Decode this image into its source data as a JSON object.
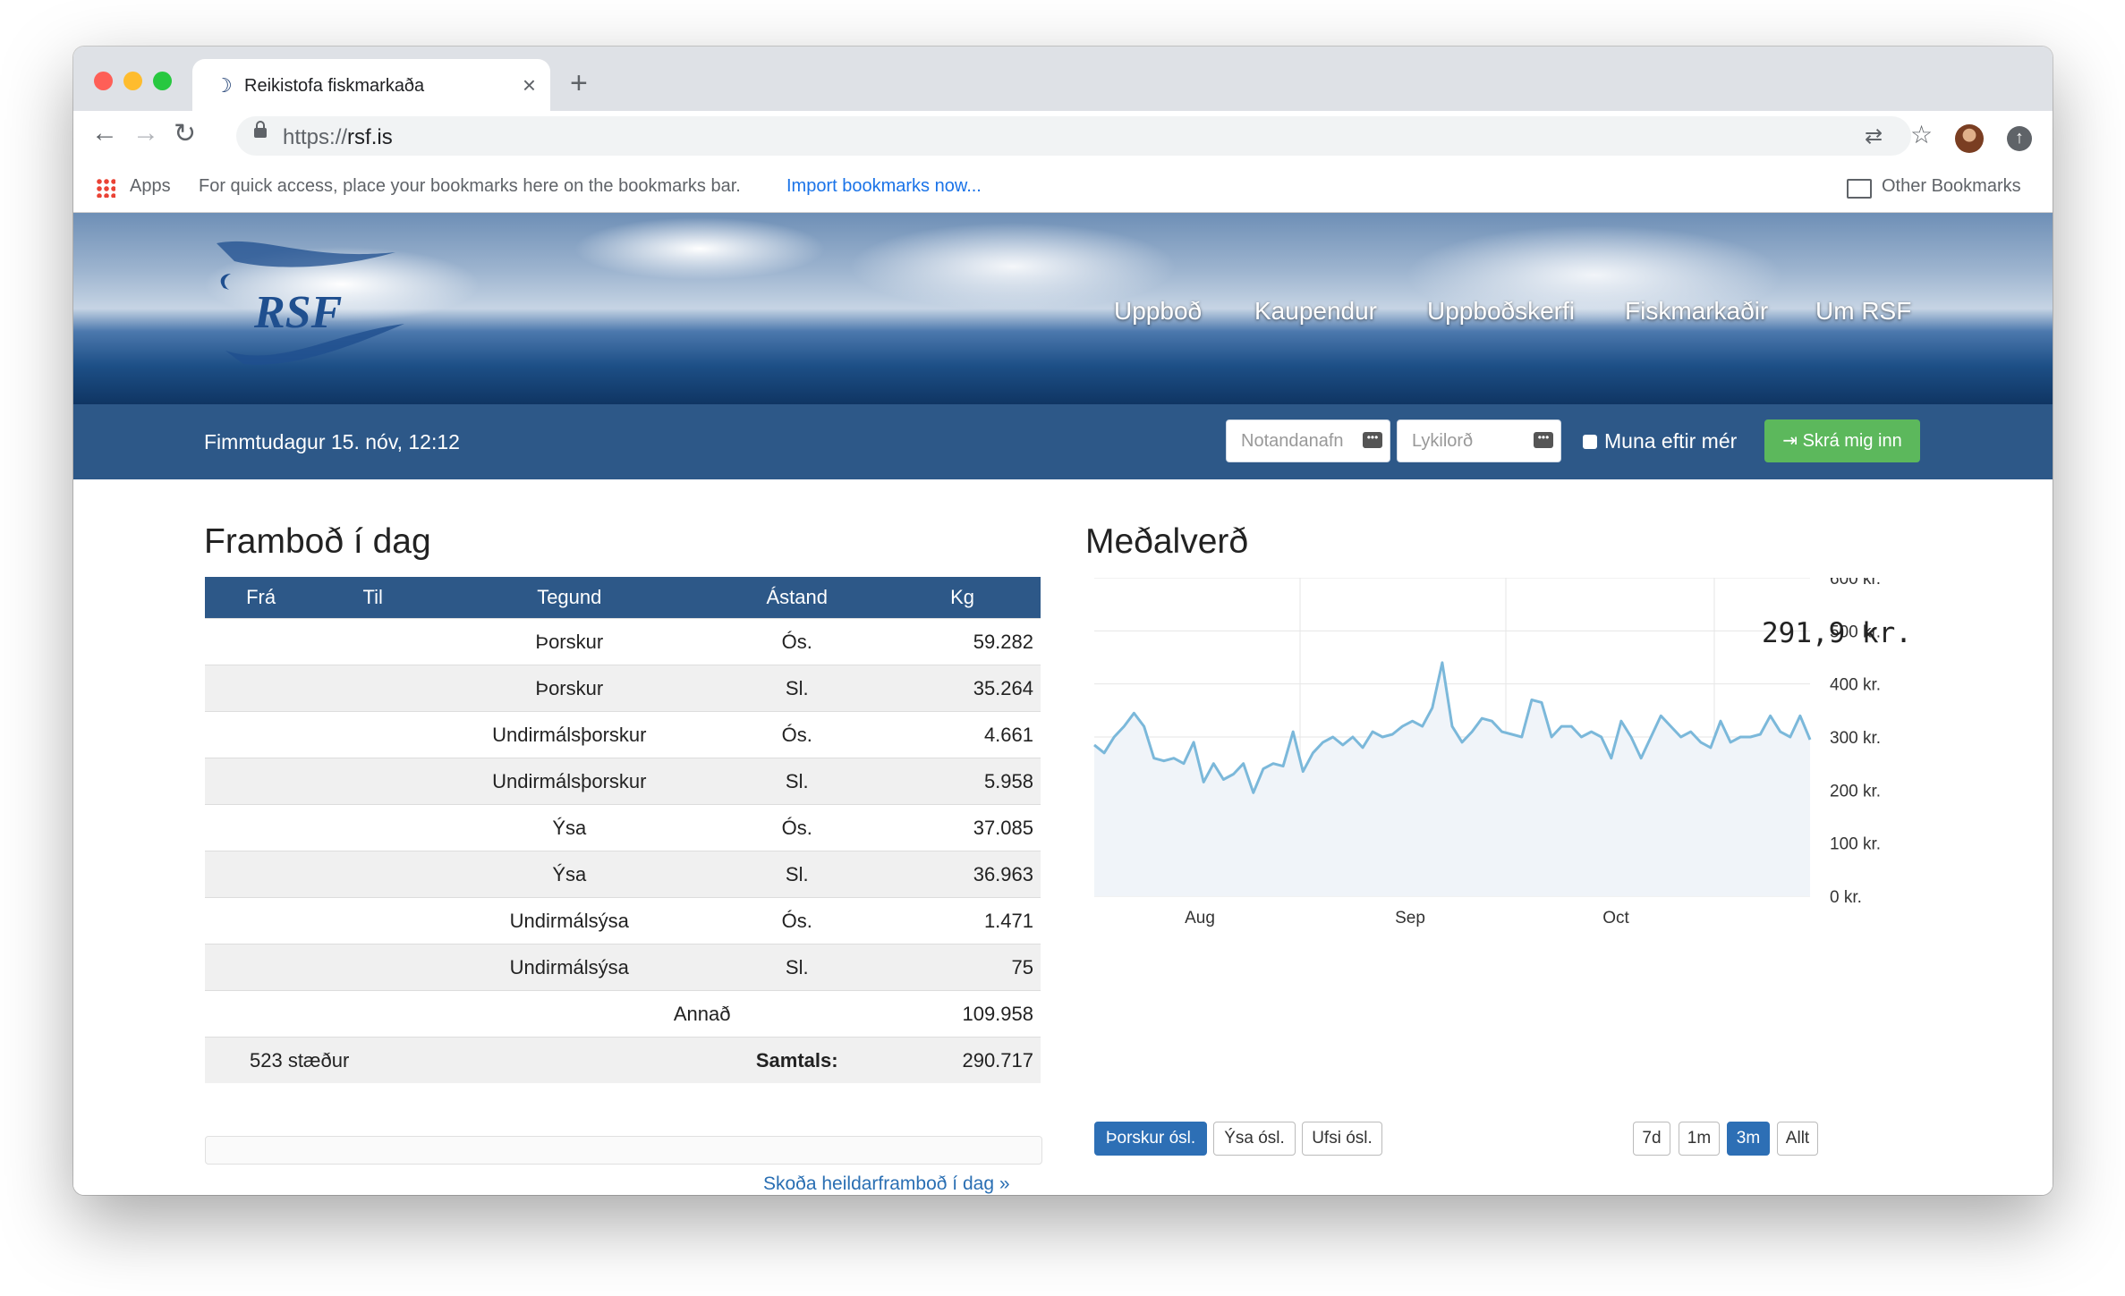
{
  "browser": {
    "tab_title": "Reikistofa fiskmarkaða",
    "new_tab": "+",
    "close": "×",
    "url_scheme": "https://",
    "url_host": "rsf.is",
    "bookmarks": {
      "apps": "Apps",
      "hint": "For quick access, place your bookmarks here on the bookmarks bar.",
      "import": "Import bookmarks now...",
      "other": "Other Bookmarks"
    }
  },
  "site": {
    "logo": "RSF",
    "nav": [
      "Uppboð",
      "Kaupendur",
      "Uppboðskerfi",
      "Fiskmarkaðir",
      "Um RSF"
    ],
    "date": "Fimmtudagur 15. nóv, 12:12",
    "username_placeholder": "Notandanafn",
    "password_placeholder": "Lykilorð",
    "remember": "Muna eftir mér",
    "login": "Skrá mig inn"
  },
  "supply": {
    "title": "Framboð í dag",
    "columns": [
      "Frá",
      "Til",
      "Tegund",
      "Ástand",
      "Kg"
    ],
    "rows": [
      {
        "tegund": "Þorskur",
        "astand": "Ós.",
        "kg": "59.282"
      },
      {
        "tegund": "Þorskur",
        "astand": "Sl.",
        "kg": "35.264"
      },
      {
        "tegund": "Undirmálsþorskur",
        "astand": "Ós.",
        "kg": "4.661"
      },
      {
        "tegund": "Undirmálsþorskur",
        "astand": "Sl.",
        "kg": "5.958"
      },
      {
        "tegund": "Ýsa",
        "astand": "Ós.",
        "kg": "37.085"
      },
      {
        "tegund": "Ýsa",
        "astand": "Sl.",
        "kg": "36.963"
      },
      {
        "tegund": "Undirmálsýsa",
        "astand": "Ós.",
        "kg": "1.471"
      },
      {
        "tegund": "Undirmálsýsa",
        "astand": "Sl.",
        "kg": "75"
      }
    ],
    "other_label": "Annað",
    "other_kg": "109.958",
    "stations": "523 stæður",
    "total_label": "Samtals:",
    "total_kg": "290.717",
    "more_link": "Skoða heildarframboð í dag »"
  },
  "price": {
    "title": "Meðalverð",
    "current_value": "291,9 kr.",
    "species_buttons": [
      "Þorskur ósl.",
      "Ýsa ósl.",
      "Ufsi ósl."
    ],
    "species_active": 0,
    "range_buttons": [
      "7d",
      "1m",
      "3m",
      "Allt"
    ],
    "range_active": 2
  },
  "chart_data": {
    "type": "area",
    "title": "",
    "xlabel": "",
    "ylabel": "",
    "y_tick_labels": [
      "0 kr.",
      "100 kr.",
      "200 kr.",
      "300 kr.",
      "400 kr.",
      "500 kr.",
      "600 kr."
    ],
    "ylim": [
      0,
      600
    ],
    "x_tick_labels": [
      "Aug",
      "Sep",
      "Oct"
    ],
    "series": [
      {
        "values": [
          285,
          270,
          300,
          320,
          345,
          320,
          260,
          255,
          260,
          250,
          290,
          215,
          250,
          220,
          230,
          250,
          195,
          240,
          250,
          245,
          310,
          235,
          270,
          290,
          300,
          285,
          300,
          280,
          310,
          300,
          305,
          320,
          330,
          320,
          355,
          440,
          320,
          290,
          310,
          335,
          330,
          310,
          305,
          300,
          370,
          365,
          300,
          320,
          320,
          300,
          310,
          300,
          260,
          330,
          300,
          260,
          300,
          340,
          320,
          300,
          310,
          290,
          280,
          330,
          290,
          300,
          300,
          305,
          340,
          310,
          300,
          340,
          295
        ]
      }
    ],
    "line_color": "#7bb8da",
    "fill_color": "#f0f4f9"
  }
}
